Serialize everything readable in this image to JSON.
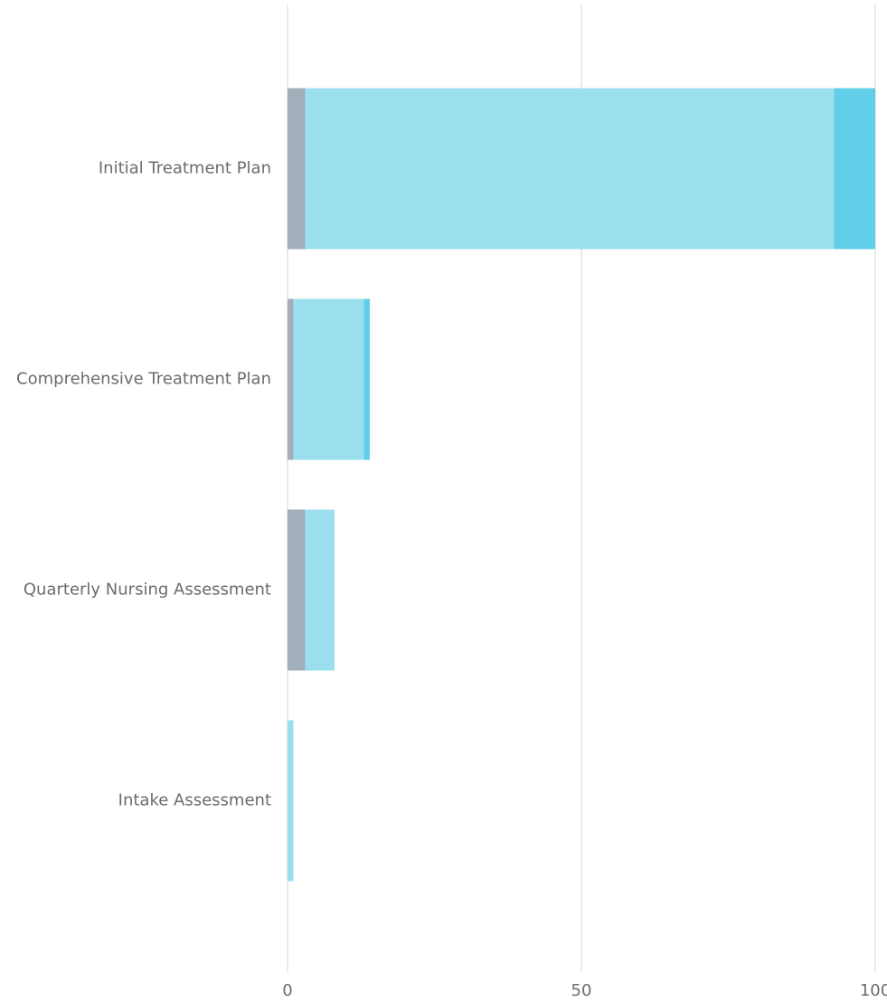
{
  "chart_data": {
    "type": "stacked_bar_horizontal",
    "categories": [
      "Initial Treatment Plan",
      "Comprehensive Treatment Plan",
      "Quarterly Nursing Assessment",
      "Intake Assessment"
    ],
    "series": [
      {
        "color": "#a3aebb",
        "values": [
          3,
          1,
          3,
          0
        ]
      },
      {
        "color": "#9bdfef",
        "values": [
          90,
          12,
          5,
          1
        ]
      },
      {
        "color": "#62cfe8",
        "values": [
          7,
          1,
          0,
          0
        ]
      }
    ],
    "xlim": [
      0,
      100
    ],
    "xticks": [
      0,
      50,
      100
    ],
    "grid": true
  }
}
